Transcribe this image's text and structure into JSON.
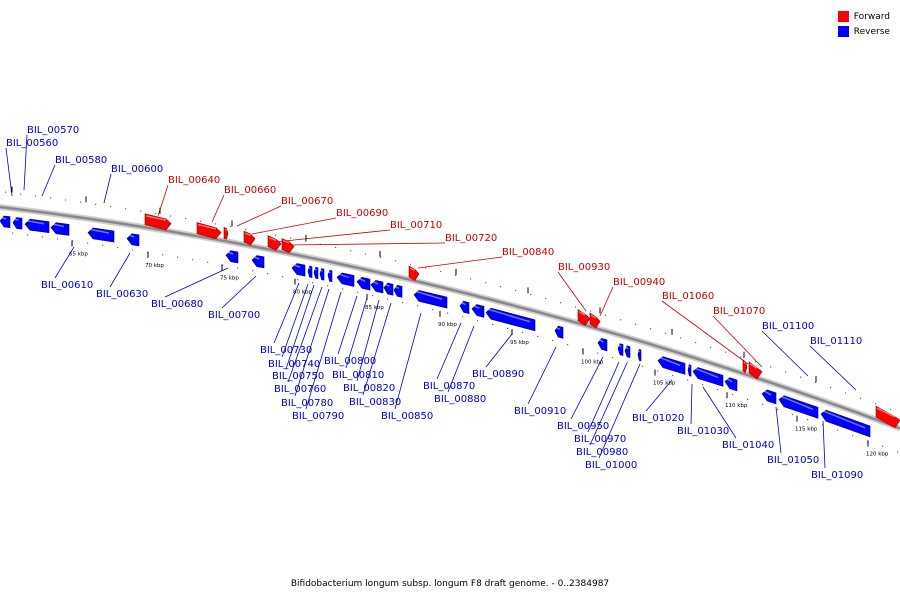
{
  "legend": {
    "items": [
      {
        "label": "Forward",
        "color": "#ff0000"
      },
      {
        "label": "Reverse",
        "color": "#0000ff"
      }
    ]
  },
  "caption": "Bifidobacterium longum subsp. longum F8 draft genome. - 0..2384987",
  "colors": {
    "forward": "#ff0000",
    "reverse": "#0000ff",
    "label_forward": "#cc0000",
    "label_reverse": "#0000cc",
    "backbone": "#888888"
  },
  "ticks": [
    "65 kbp",
    "70 kbp",
    "75 kbp",
    "80 kbp",
    "85 kbp",
    "90 kbp",
    "95 kbp",
    "100 kbp",
    "105 kbp",
    "110 kbp",
    "115 kbp",
    "120 kbp"
  ],
  "genes": [
    {
      "label": "BIL_00570",
      "strand": "reverse"
    },
    {
      "label": "BIL_00560",
      "strand": "reverse"
    },
    {
      "label": "BIL_00580",
      "strand": "reverse"
    },
    {
      "label": "BIL_00600",
      "strand": "reverse"
    },
    {
      "label": "BIL_00640",
      "strand": "forward"
    },
    {
      "label": "BIL_00660",
      "strand": "forward"
    },
    {
      "label": "BIL_00670",
      "strand": "forward"
    },
    {
      "label": "BIL_00690",
      "strand": "forward"
    },
    {
      "label": "BIL_00710",
      "strand": "forward"
    },
    {
      "label": "BIL_00720",
      "strand": "forward"
    },
    {
      "label": "BIL_00840",
      "strand": "forward"
    },
    {
      "label": "BIL_00930",
      "strand": "forward"
    },
    {
      "label": "BIL_00940",
      "strand": "forward"
    },
    {
      "label": "BIL_01060",
      "strand": "forward"
    },
    {
      "label": "BIL_01070",
      "strand": "forward"
    },
    {
      "label": "BIL_01100",
      "strand": "reverse"
    },
    {
      "label": "BIL_01110",
      "strand": "reverse"
    },
    {
      "label": "BIL_00610",
      "strand": "reverse"
    },
    {
      "label": "BIL_00630",
      "strand": "reverse"
    },
    {
      "label": "BIL_00680",
      "strand": "reverse"
    },
    {
      "label": "BIL_00700",
      "strand": "reverse"
    },
    {
      "label": "BIL_00730",
      "strand": "reverse"
    },
    {
      "label": "BIL_00740",
      "strand": "reverse"
    },
    {
      "label": "BIL_00750",
      "strand": "reverse"
    },
    {
      "label": "BIL_00760",
      "strand": "reverse"
    },
    {
      "label": "BIL_00780",
      "strand": "reverse"
    },
    {
      "label": "BIL_00790",
      "strand": "reverse"
    },
    {
      "label": "BIL_00800",
      "strand": "reverse"
    },
    {
      "label": "BIL_00810",
      "strand": "reverse"
    },
    {
      "label": "BIL_00820",
      "strand": "reverse"
    },
    {
      "label": "BIL_00830",
      "strand": "reverse"
    },
    {
      "label": "BIL_00850",
      "strand": "reverse"
    },
    {
      "label": "BIL_00870",
      "strand": "reverse"
    },
    {
      "label": "BIL_00880",
      "strand": "reverse"
    },
    {
      "label": "BIL_00890",
      "strand": "reverse"
    },
    {
      "label": "BIL_00910",
      "strand": "reverse"
    },
    {
      "label": "BIL_00950",
      "strand": "reverse"
    },
    {
      "label": "BIL_00970",
      "strand": "reverse"
    },
    {
      "label": "BIL_00980",
      "strand": "reverse"
    },
    {
      "label": "BIL_01000",
      "strand": "reverse"
    },
    {
      "label": "BIL_01020",
      "strand": "reverse"
    },
    {
      "label": "BIL_01030",
      "strand": "reverse"
    },
    {
      "label": "BIL_01040",
      "strand": "reverse"
    },
    {
      "label": "BIL_01050",
      "strand": "reverse"
    },
    {
      "label": "BIL_01090",
      "strand": "reverse"
    }
  ]
}
